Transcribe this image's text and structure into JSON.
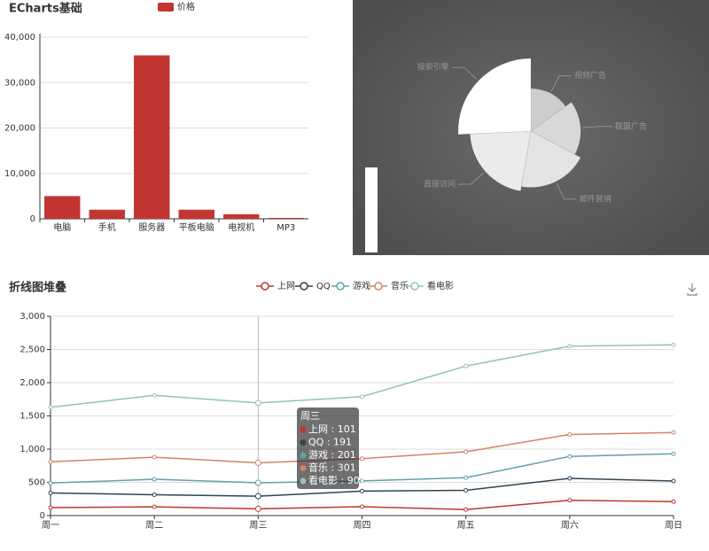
{
  "chart_data": [
    {
      "type": "bar",
      "title": "ECharts基础",
      "legend": "价格",
      "color": "#c23531",
      "categories": [
        "电脑",
        "手机",
        "服务器",
        "平板电脑",
        "电视机",
        "MP3"
      ],
      "values": [
        5000,
        2000,
        36000,
        2000,
        1000,
        200
      ],
      "ylim": [
        0,
        40000
      ],
      "yticks": [
        0,
        {
          "value": 10000,
          "label": "10,000"
        },
        {
          "value": 20000,
          "label": "20,000"
        },
        {
          "value": 30000,
          "label": "30,000"
        },
        {
          "value": 40000,
          "label": "40,000"
        }
      ],
      "grid": true
    },
    {
      "type": "pie",
      "rose": true,
      "categories": [
        "视频广告",
        "联盟广告",
        "邮件营销",
        "直接访问",
        "搜索引擎"
      ],
      "values": [
        235,
        274,
        310,
        335,
        400
      ]
    },
    {
      "type": "line",
      "title": "折线图堆叠",
      "stacked": true,
      "categories": [
        "周一",
        "周二",
        "周三",
        "周四",
        "周五",
        "周六",
        "周日"
      ],
      "series": [
        {
          "name": "上网",
          "color": "#c23531",
          "values": [
            120,
            132,
            101,
            134,
            90,
            230,
            210
          ]
        },
        {
          "name": "QQ",
          "color": "#2f4554",
          "values": [
            220,
            182,
            191,
            234,
            290,
            330,
            310
          ]
        },
        {
          "name": "游戏",
          "color": "#61a0a8",
          "values": [
            150,
            232,
            201,
            154,
            190,
            330,
            410
          ]
        },
        {
          "name": "音乐",
          "color": "#d48265",
          "values": [
            320,
            332,
            301,
            334,
            390,
            330,
            320
          ]
        },
        {
          "name": "看电影",
          "color": "#91c7ae",
          "values": [
            820,
            932,
            901,
            934,
            1290,
            1330,
            1320
          ]
        }
      ],
      "ylim": [
        0,
        3000
      ],
      "yticks": [
        0,
        500,
        {
          "value": 1000,
          "label": "1,000"
        },
        {
          "value": 1500,
          "label": "1,500"
        },
        {
          "value": 2000,
          "label": "2,000"
        },
        {
          "value": 2500,
          "label": "2,500"
        },
        {
          "value": 3000,
          "label": "3,000"
        }
      ],
      "grid": true
    }
  ]
}
